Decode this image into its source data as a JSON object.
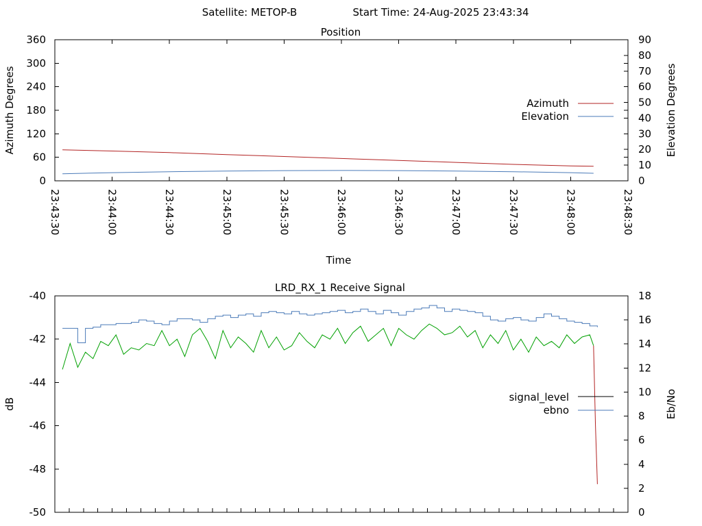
{
  "header": {
    "satellite": "Satellite: METOP-B",
    "start_time": "Start Time: 24-Aug-2025 23:43:34"
  },
  "chart_data": [
    {
      "type": "line",
      "title": "Position",
      "xlabel": "Time",
      "ylabel": "Azimuth Degrees",
      "y2label": "Elevation Degrees",
      "x_ticks": [
        "23:43:30",
        "23:44:00",
        "23:44:30",
        "23:45:00",
        "23:45:30",
        "23:46:00",
        "23:46:30",
        "23:47:00",
        "23:47:30",
        "23:48:00",
        "23:48:30"
      ],
      "xlim": [
        "23:43:30",
        "23:48:30"
      ],
      "ylim": [
        0,
        360
      ],
      "y_ticks": [
        0,
        60,
        120,
        180,
        240,
        300,
        360
      ],
      "y2lim": [
        0,
        90
      ],
      "y2_ticks": [
        0,
        10,
        20,
        30,
        40,
        50,
        60,
        70,
        80,
        90
      ],
      "legend_position": "right",
      "grid": false,
      "series": [
        {
          "name": "Azimuth",
          "axis": "left",
          "color": "#b22222",
          "x": [
            "23:43:34",
            "23:44:00",
            "23:44:30",
            "23:45:00",
            "23:45:30",
            "23:46:00",
            "23:46:30",
            "23:47:00",
            "23:47:30",
            "23:48:00",
            "23:48:12"
          ],
          "values": [
            79,
            76,
            72,
            67,
            62,
            57,
            52,
            47,
            42,
            38,
            37
          ]
        },
        {
          "name": "Elevation",
          "axis": "right",
          "color": "#4a7ab8",
          "x": [
            "23:43:34",
            "23:44:00",
            "23:44:30",
            "23:45:00",
            "23:45:30",
            "23:46:00",
            "23:46:30",
            "23:47:00",
            "23:47:30",
            "23:48:00",
            "23:48:12"
          ],
          "values": [
            4.5,
            5.2,
            5.8,
            6.2,
            6.5,
            6.6,
            6.5,
            6.2,
            5.8,
            5.2,
            4.8
          ]
        }
      ]
    },
    {
      "type": "line",
      "title": "LRD_RX_1 Receive Signal",
      "xlabel": "",
      "ylabel": "dB",
      "y2label": "Eb/No",
      "ylim": [
        -50,
        -40
      ],
      "y_ticks": [
        -50,
        -48,
        -46,
        -44,
        -42,
        -40
      ],
      "y2lim": [
        0,
        18
      ],
      "y2_ticks": [
        0,
        2,
        4,
        6,
        8,
        10,
        12,
        14,
        16,
        18
      ],
      "x_tick_count": 41,
      "legend_position": "right",
      "grid": false,
      "green_trace_color": "#00a000",
      "series": [
        {
          "name": "signal_level",
          "axis": "left",
          "color": "#000000",
          "legend_color": "#000000",
          "trace_color": "#b22222",
          "x": [
            "23:48:12",
            "23:48:13",
            "23:48:14"
          ],
          "values": [
            -42.3,
            -46.0,
            -48.7
          ]
        },
        {
          "name": "ebno",
          "axis": "right",
          "color": "#4a7ab8",
          "x": [
            "23:43:34",
            "23:43:38",
            "23:43:42",
            "23:43:46",
            "23:43:50",
            "23:43:54",
            "23:43:58",
            "23:44:02",
            "23:44:06",
            "23:44:10",
            "23:44:14",
            "23:44:18",
            "23:44:22",
            "23:44:26",
            "23:44:30",
            "23:44:34",
            "23:44:38",
            "23:44:42",
            "23:44:46",
            "23:44:50",
            "23:44:54",
            "23:44:58",
            "23:45:02",
            "23:45:06",
            "23:45:10",
            "23:45:14",
            "23:45:18",
            "23:45:22",
            "23:45:26",
            "23:45:30",
            "23:45:34",
            "23:45:38",
            "23:45:42",
            "23:45:46",
            "23:45:50",
            "23:45:54",
            "23:45:58",
            "23:46:02",
            "23:46:06",
            "23:46:10",
            "23:46:14",
            "23:46:18",
            "23:46:22",
            "23:46:26",
            "23:46:30",
            "23:46:34",
            "23:46:38",
            "23:46:42",
            "23:46:46",
            "23:46:50",
            "23:46:54",
            "23:46:58",
            "23:47:02",
            "23:47:06",
            "23:47:10",
            "23:47:14",
            "23:47:18",
            "23:47:22",
            "23:47:26",
            "23:47:30",
            "23:47:34",
            "23:47:38",
            "23:47:42",
            "23:47:46",
            "23:47:50",
            "23:47:54",
            "23:47:58",
            "23:48:02",
            "23:48:06",
            "23:48:10",
            "23:48:14"
          ],
          "values": [
            15.3,
            15.3,
            14.1,
            15.3,
            15.4,
            15.6,
            15.6,
            15.7,
            15.7,
            15.8,
            16.0,
            15.9,
            15.7,
            15.6,
            15.9,
            16.1,
            16.1,
            16.0,
            15.8,
            16.1,
            16.3,
            16.4,
            16.2,
            16.4,
            16.5,
            16.3,
            16.6,
            16.7,
            16.6,
            16.5,
            16.7,
            16.5,
            16.4,
            16.5,
            16.6,
            16.7,
            16.8,
            16.6,
            16.7,
            16.9,
            16.7,
            16.5,
            16.8,
            16.6,
            16.4,
            16.7,
            16.9,
            17.0,
            17.2,
            17.0,
            16.7,
            16.9,
            16.8,
            16.7,
            16.6,
            16.3,
            16.0,
            15.9,
            16.1,
            16.2,
            16.0,
            15.9,
            16.2,
            16.5,
            16.3,
            16.1,
            15.9,
            15.8,
            15.7,
            15.5,
            15.4
          ]
        },
        {
          "name": "",
          "axis": "left",
          "color": "#00a000",
          "x": [
            "23:43:34",
            "23:43:38",
            "23:43:42",
            "23:43:46",
            "23:43:50",
            "23:43:54",
            "23:43:58",
            "23:44:02",
            "23:44:06",
            "23:44:10",
            "23:44:14",
            "23:44:18",
            "23:44:22",
            "23:44:26",
            "23:44:30",
            "23:44:34",
            "23:44:38",
            "23:44:42",
            "23:44:46",
            "23:44:50",
            "23:44:54",
            "23:44:58",
            "23:45:02",
            "23:45:06",
            "23:45:10",
            "23:45:14",
            "23:45:18",
            "23:45:22",
            "23:45:26",
            "23:45:30",
            "23:45:34",
            "23:45:38",
            "23:45:42",
            "23:45:46",
            "23:45:50",
            "23:45:54",
            "23:45:58",
            "23:46:02",
            "23:46:06",
            "23:46:10",
            "23:46:14",
            "23:46:18",
            "23:46:22",
            "23:46:26",
            "23:46:30",
            "23:46:34",
            "23:46:38",
            "23:46:42",
            "23:46:46",
            "23:46:50",
            "23:46:54",
            "23:46:58",
            "23:47:02",
            "23:47:06",
            "23:47:10",
            "23:47:14",
            "23:47:18",
            "23:47:22",
            "23:47:26",
            "23:47:30",
            "23:47:34",
            "23:47:38",
            "23:47:42",
            "23:47:46",
            "23:47:50",
            "23:47:54",
            "23:47:58",
            "23:48:02",
            "23:48:06",
            "23:48:10",
            "23:48:12"
          ],
          "values": [
            -43.4,
            -42.2,
            -43.3,
            -42.6,
            -42.9,
            -42.1,
            -42.3,
            -41.8,
            -42.7,
            -42.4,
            -42.5,
            -42.2,
            -42.3,
            -41.6,
            -42.3,
            -42.0,
            -42.8,
            -41.8,
            -41.5,
            -42.1,
            -42.9,
            -41.6,
            -42.4,
            -41.9,
            -42.2,
            -42.6,
            -41.6,
            -42.4,
            -41.9,
            -42.5,
            -42.3,
            -41.7,
            -42.1,
            -42.4,
            -41.8,
            -42.0,
            -41.5,
            -42.2,
            -41.7,
            -41.4,
            -42.1,
            -41.8,
            -41.5,
            -42.3,
            -41.5,
            -41.8,
            -42.0,
            -41.6,
            -41.3,
            -41.5,
            -41.8,
            -41.7,
            -41.4,
            -41.9,
            -41.6,
            -42.4,
            -41.8,
            -42.2,
            -41.6,
            -42.5,
            -42.0,
            -42.6,
            -41.9,
            -42.3,
            -42.1,
            -42.4,
            -41.8,
            -42.2,
            -41.9,
            -41.8,
            -42.3
          ]
        }
      ]
    }
  ]
}
